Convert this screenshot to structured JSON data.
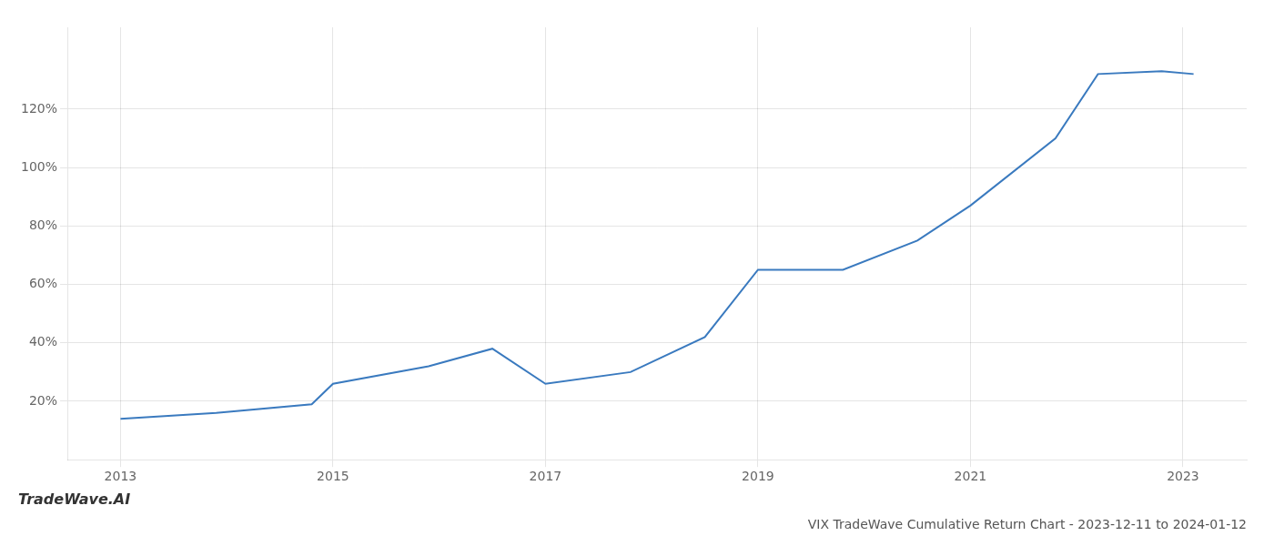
{
  "chart_data": {
    "type": "line",
    "title": "VIX TradeWave Cumulative Return Chart - 2023-12-11 to 2024-01-12",
    "annotations": [
      "TradeWave.AI"
    ],
    "x": [
      2013.0,
      2013.9,
      2014.8,
      2015.0,
      2015.9,
      2016.5,
      2017.0,
      2017.8,
      2018.5,
      2019.0,
      2019.8,
      2020.5,
      2021.0,
      2021.8,
      2022.2,
      2022.8,
      2023.1
    ],
    "values": [
      14,
      16,
      19,
      26,
      32,
      38,
      26,
      30,
      42,
      65,
      65,
      75,
      87,
      110,
      132,
      133,
      132
    ],
    "color": "#3a7abf",
    "xlim": [
      2012.5,
      2023.6
    ],
    "ylim": [
      0,
      148
    ],
    "xticks": [
      2013,
      2015,
      2017,
      2019,
      2021,
      2023
    ],
    "yticks": [
      {
        "value": 20,
        "label": "20%"
      },
      {
        "value": 40,
        "label": "40%"
      },
      {
        "value": 60,
        "label": "60%"
      },
      {
        "value": 80,
        "label": "80%"
      },
      {
        "value": 100,
        "label": "100%"
      },
      {
        "value": 120,
        "label": "120%"
      }
    ],
    "grid": true
  }
}
